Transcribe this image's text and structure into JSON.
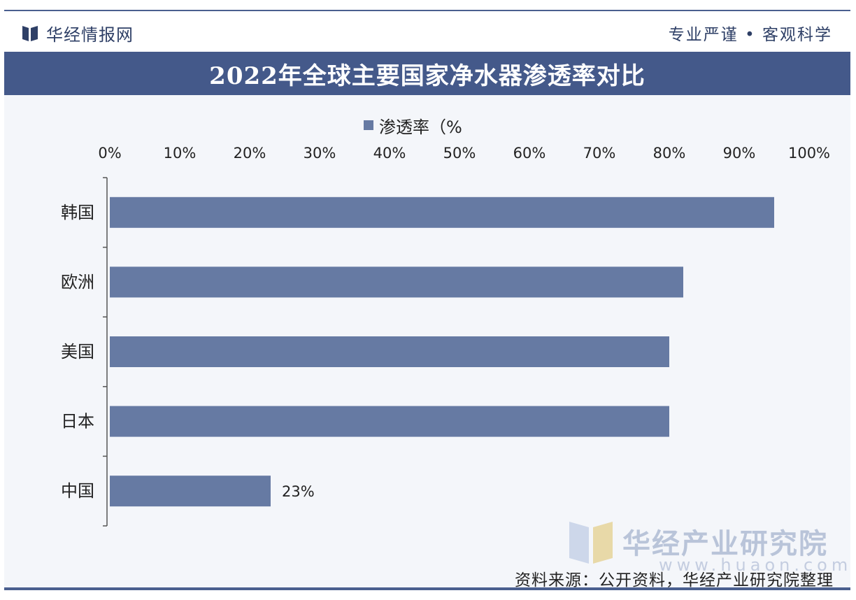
{
  "header": {
    "brand": "华经情报网",
    "slogan": "专业严谨 • 客观科学"
  },
  "colors": {
    "bar": "#667aa3",
    "title_bg": "#44598a",
    "axis": "#555555"
  },
  "chart_data": {
    "type": "bar",
    "orientation": "horizontal",
    "title": "2022年全球主要国家净水器渗透率对比",
    "categories": [
      "韩国",
      "欧洲",
      "美国",
      "日本",
      "中国"
    ],
    "series": [
      {
        "name": "渗透率（%",
        "values": [
          95,
          82,
          80,
          80,
          23
        ]
      }
    ],
    "data_labels": [
      "",
      "",
      "",
      "",
      "23%"
    ],
    "xlim": [
      0,
      100
    ],
    "x_ticks": [
      "0%",
      "10%",
      "20%",
      "30%",
      "40%",
      "50%",
      "60%",
      "70%",
      "80%",
      "90%",
      "100%"
    ],
    "x_axis_position": "top",
    "legend_position": "top",
    "grid": false
  },
  "watermark": {
    "text": "华经产业研究院",
    "url": "www.huaon.com"
  },
  "source": "资料来源：公开资料，华经产业研究院整理"
}
